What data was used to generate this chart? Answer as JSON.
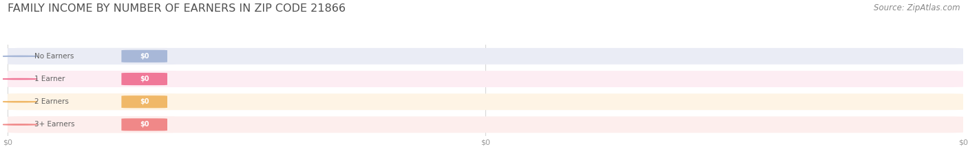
{
  "title": "FAMILY INCOME BY NUMBER OF EARNERS IN ZIP CODE 21866",
  "source": "Source: ZipAtlas.com",
  "categories": [
    "No Earners",
    "1 Earner",
    "2 Earners",
    "3+ Earners"
  ],
  "values": [
    0,
    0,
    0,
    0
  ],
  "bar_colors": [
    "#a8b8d8",
    "#f07898",
    "#f0b868",
    "#f08888"
  ],
  "bar_bg_colors": [
    "#eaecf5",
    "#fdedf3",
    "#fef4e5",
    "#fdeeed"
  ],
  "value_labels": [
    "$0",
    "$0",
    "$0",
    "$0"
  ],
  "title_color": "#505050",
  "title_fontsize": 11.5,
  "source_fontsize": 8.5,
  "bg_color": "#ffffff",
  "tick_label_color": "#999999",
  "x_tick_labels": [
    "$0",
    "$0",
    "$0"
  ],
  "x_tick_positions": [
    0.0,
    0.5,
    1.0
  ]
}
